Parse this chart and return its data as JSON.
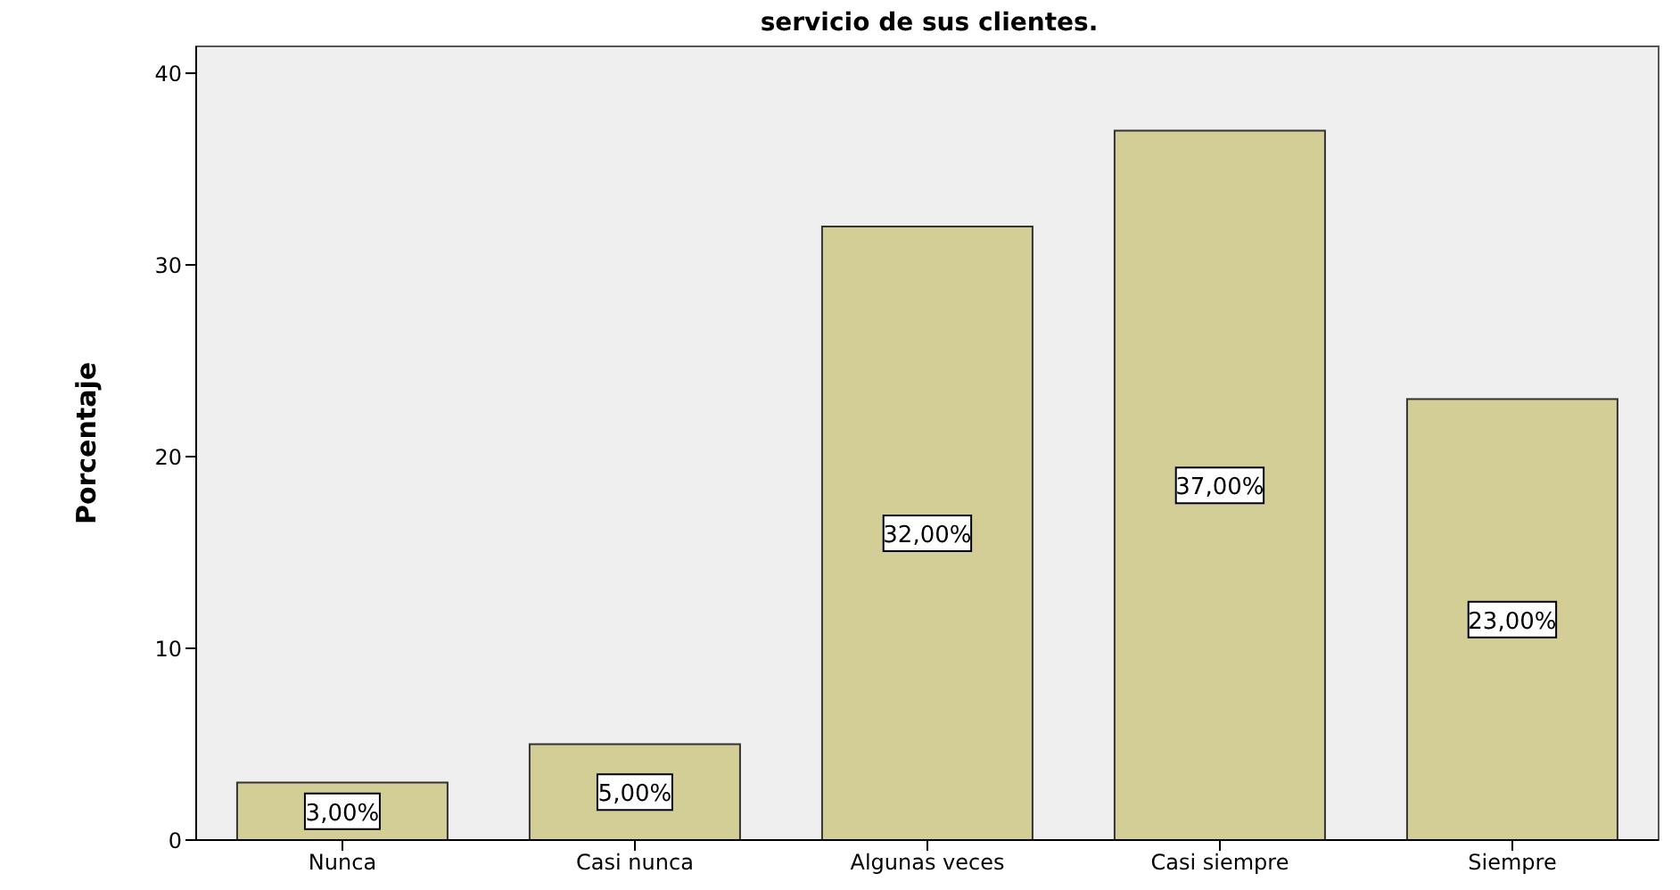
{
  "chart_data": {
    "type": "bar",
    "title": "servicio de sus clientes.",
    "ylabel": "Porcentaje",
    "categories": [
      "Nunca",
      "Casi nunca",
      "Algunas veces",
      "Casi siempre",
      "Siempre"
    ],
    "values": [
      3,
      5,
      32,
      37,
      23
    ],
    "value_labels": [
      "3,00%",
      "5,00%",
      "32,00%",
      "37,00%",
      "23,00%"
    ],
    "color": "#d3cd96",
    "ylim": [
      0,
      41.4
    ],
    "yticks": [
      0,
      10,
      20,
      30,
      40
    ]
  }
}
